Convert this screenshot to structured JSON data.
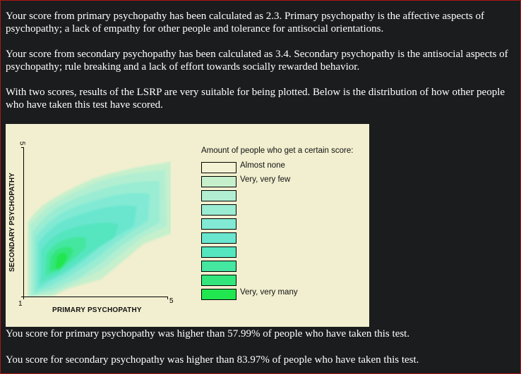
{
  "paragraphs": {
    "primary": "Your score from primary psychopathy has been calculated as 2.3. Primary psychopathy is the affective aspects of psychopathy; a lack of empathy for other people and tolerance for antisocial orientations.",
    "secondary": "Your score from secondary psychopathy has been calculated as 3.4. Secondary psychopathy is the antisocial aspects of psychopathy; rule breaking and a lack of effort towards socially rewarded behavior.",
    "plot_intro": "With two scores, results of the LSRP are very suitable for being plotted. Below is the distribution of how other people who have taken this test have scored."
  },
  "results": {
    "primary": "You score for primary psychopathy was higher than 57.99% of people who have taken this test.",
    "secondary": "You score for secondary psychopathy was higher than 83.97% of people who have taken this test."
  },
  "chart_data": {
    "type": "heatmap",
    "xlabel": "PRIMARY PSYCHOPATHY",
    "ylabel": "SECONDARY PSYCHOPATHY",
    "xlim": [
      1,
      5
    ],
    "ylim": [
      1,
      5
    ],
    "x_ticks": [
      "1",
      "5"
    ],
    "y_ticks": [
      "5"
    ],
    "legend_title": "Amount of people who get a certain score:",
    "legend": [
      {
        "label": "Almost none",
        "color": "#f4f2d4"
      },
      {
        "label": "Very, very few",
        "color": "#c6f0cc"
      },
      {
        "label": "",
        "color": "#b2efd2"
      },
      {
        "label": "",
        "color": "#9aecd3"
      },
      {
        "label": "",
        "color": "#82ead4"
      },
      {
        "label": "",
        "color": "#6ae6cf"
      },
      {
        "label": "",
        "color": "#55e6bf"
      },
      {
        "label": "",
        "color": "#44e6a0"
      },
      {
        "label": "",
        "color": "#33e67c"
      },
      {
        "label": "Very, very many",
        "color": "#22e650"
      }
    ]
  },
  "colors": {
    "background": "#1b1c1d",
    "border": "#b01616",
    "figure_bg": "#f2efd0"
  }
}
